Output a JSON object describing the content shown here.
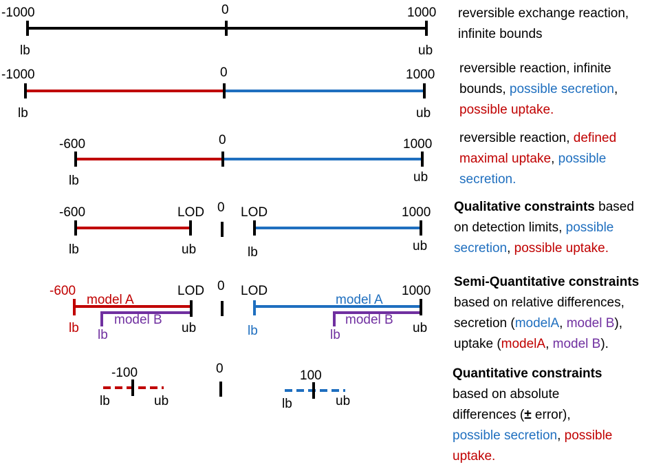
{
  "colors": {
    "black": "#000000",
    "uptake_red": "#c00000",
    "secretion_blue": "#1f6fbf",
    "model_b_purple": "#7030a0"
  },
  "rows": [
    {
      "labels": {
        "left_value": "-1000",
        "zero": "0",
        "right_value": "1000",
        "lb": "lb",
        "ub": "ub"
      },
      "description": [
        {
          "lines": [
            [
              {
                "text": "reversible exchange reaction,",
                "color": "black"
              }
            ],
            [
              {
                "text": "infinite bounds",
                "color": "black"
              }
            ]
          ]
        }
      ]
    },
    {
      "labels": {
        "left_value": "-1000",
        "zero": "0",
        "right_value": "1000",
        "lb": "lb",
        "ub": "ub"
      },
      "description": [
        {
          "lines": [
            [
              {
                "text": "reversible reaction, infinite",
                "color": "black"
              }
            ],
            [
              {
                "text": "bounds, ",
                "color": "black"
              },
              {
                "text": "possible secretion",
                "color": "secretion_blue"
              },
              {
                "text": ",",
                "color": "black"
              }
            ],
            [
              {
                "text": "possible uptake.",
                "color": "uptake_red"
              }
            ]
          ]
        }
      ]
    },
    {
      "labels": {
        "left_value": "-600",
        "zero": "0",
        "right_value": "1000",
        "lb": "lb",
        "ub": "ub"
      },
      "description": [
        {
          "lines": [
            [
              {
                "text": "reversible reaction, ",
                "color": "black"
              },
              {
                "text": "defined",
                "color": "uptake_red"
              }
            ],
            [
              {
                "text": "maximal uptake",
                "color": "uptake_red"
              },
              {
                "text": ", ",
                "color": "black"
              },
              {
                "text": "possible",
                "color": "secretion_blue"
              }
            ],
            [
              {
                "text": "secretion.",
                "color": "secretion_blue"
              }
            ]
          ]
        }
      ]
    },
    {
      "labels": {
        "left_value": "-600",
        "lod_left": "LOD",
        "zero": "0",
        "lod_right": "LOD",
        "right_value": "1000",
        "lb_left": "lb",
        "ub_left": "ub",
        "lb_right": "lb",
        "ub_right": "ub"
      },
      "description": [
        {
          "lines": [
            [
              {
                "text": "Qualitative constraints",
                "color": "black",
                "bold": true
              },
              {
                "text": " based",
                "color": "black"
              }
            ],
            [
              {
                "text": "on detection limits, ",
                "color": "black"
              },
              {
                "text": "possible",
                "color": "secretion_blue"
              }
            ],
            [
              {
                "text": "secretion",
                "color": "secretion_blue"
              },
              {
                "text": ", ",
                "color": "black"
              },
              {
                "text": "possible uptake.",
                "color": "uptake_red"
              }
            ]
          ]
        }
      ]
    },
    {
      "labels": {
        "left_value": "-600",
        "lod_left": "LOD",
        "zero": "0",
        "lod_right": "LOD",
        "right_value": "1000",
        "model_a_left": "model A",
        "model_b_left": "model B",
        "model_a_right": "model A",
        "model_b_right": "model B",
        "lb_red": "lb",
        "lb_purple_left": "lb",
        "ub_left": "ub",
        "lb_blue": "lb",
        "lb_purple_right": "lb",
        "ub_right": "ub"
      },
      "description": [
        {
          "lines": [
            [
              {
                "text": "Semi-Quantitative constraints",
                "color": "black",
                "bold": true
              }
            ],
            [
              {
                "text": "based on relative differences,",
                "color": "black"
              }
            ],
            [
              {
                "text": "secretion (",
                "color": "black"
              },
              {
                "text": "modelA",
                "color": "secretion_blue"
              },
              {
                "text": ", ",
                "color": "black"
              },
              {
                "text": "model B",
                "color": "model_b_purple"
              },
              {
                "text": "),",
                "color": "black"
              }
            ],
            [
              {
                "text": "uptake (",
                "color": "black"
              },
              {
                "text": "modelA",
                "color": "uptake_red"
              },
              {
                "text": ", ",
                "color": "black"
              },
              {
                "text": "model B",
                "color": "model_b_purple"
              },
              {
                "text": ").",
                "color": "black"
              }
            ]
          ]
        }
      ]
    },
    {
      "labels": {
        "left_value": "-100",
        "zero": "0",
        "right_value": "100",
        "lb_left": "lb",
        "ub_left": "ub",
        "lb_right": "lb",
        "ub_right": "ub"
      },
      "description": [
        {
          "lines": [
            [
              {
                "text": "Quantitative constraints",
                "color": "black",
                "bold": true
              }
            ],
            [
              {
                "text": "based on absolute",
                "color": "black"
              }
            ],
            [
              {
                "text": "differences (",
                "color": "black"
              },
              {
                "text": "±",
                "color": "black",
                "bold": true
              },
              {
                "text": " error),",
                "color": "black"
              }
            ],
            [
              {
                "text": "possible secretion",
                "color": "secretion_blue"
              },
              {
                "text": ", ",
                "color": "black"
              },
              {
                "text": "possible",
                "color": "uptake_red"
              }
            ],
            [
              {
                "text": "uptake.",
                "color": "uptake_red"
              }
            ]
          ]
        }
      ]
    }
  ]
}
